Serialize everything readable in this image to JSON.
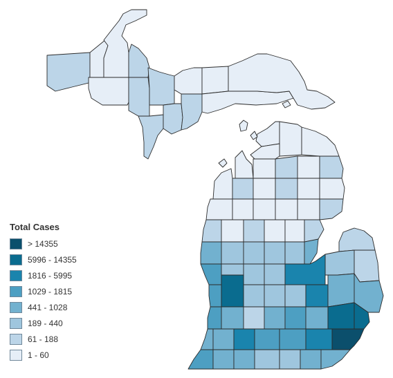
{
  "legend": {
    "title": "Total Cases",
    "items": [
      {
        "label": "> 14355",
        "color": "#0b4f6c"
      },
      {
        "label": "5996 - 14355",
        "color": "#0a6c8f"
      },
      {
        "label": "1816 - 5995",
        "color": "#1a84ad"
      },
      {
        "label": "1029 - 1815",
        "color": "#4d9fc2"
      },
      {
        "label": "441 - 1028",
        "color": "#72b1cf"
      },
      {
        "label": "189 - 440",
        "color": "#9fc6de"
      },
      {
        "label": "61 - 188",
        "color": "#bcd5e8"
      },
      {
        "label": "1 - 60",
        "color": "#e6eef7"
      }
    ]
  }
}
